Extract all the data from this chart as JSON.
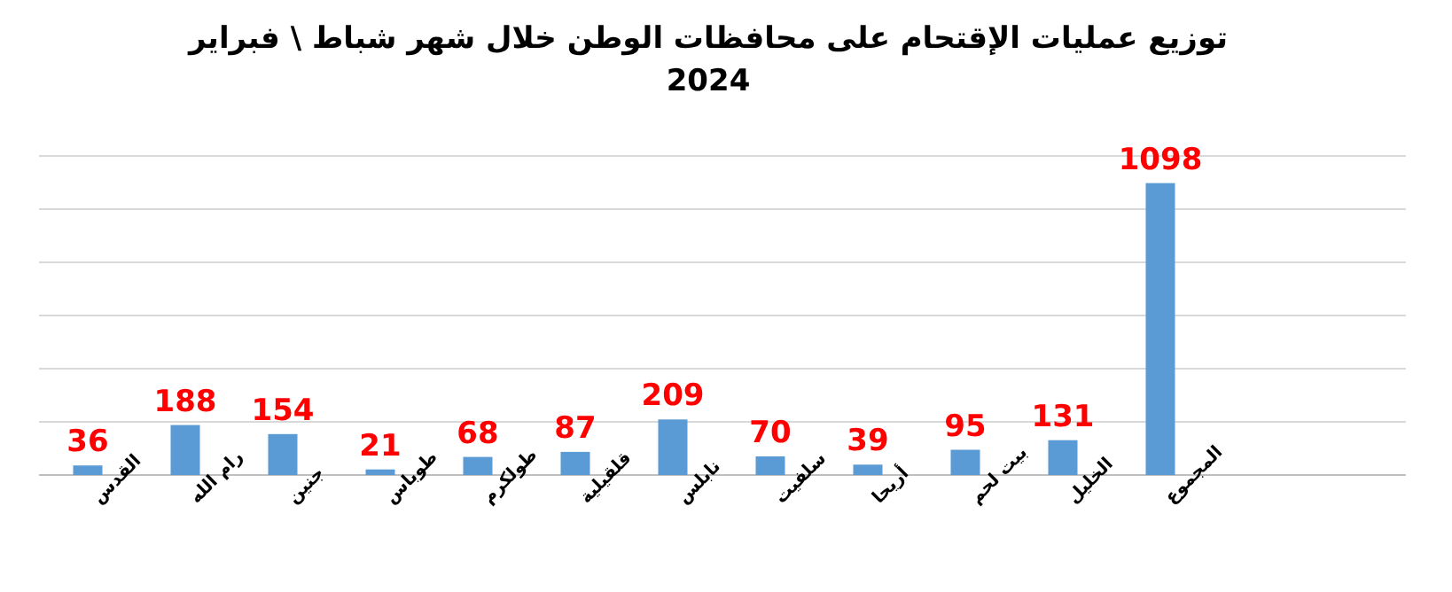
{
  "chart_data": {
    "type": "bar",
    "title": "توزيع عمليات الإقتحام على محافظات الوطن خلال شهر شباط \\ فبراير 2024",
    "categories": [
      "القدس",
      "رام الله",
      "جنين",
      "طوباس",
      "طولكرم",
      "قلقيلية",
      "نابلس",
      "سلفيت",
      "أريحا",
      "بيت لحم",
      "الخليل",
      "المجموع"
    ],
    "values": [
      36,
      188,
      154,
      21,
      68,
      87,
      209,
      70,
      39,
      95,
      131,
      1098
    ],
    "color": "#5b9bd5",
    "data_labels": true,
    "ylim": [
      0,
      1200
    ],
    "yticks": [
      {
        "value": 0,
        "label": null
      },
      {
        "value": 200,
        "label": null
      },
      {
        "value": 400,
        "label": null
      },
      {
        "value": 600,
        "label": null
      },
      {
        "value": 800,
        "label": null
      },
      {
        "value": 1000,
        "label": null
      },
      {
        "value": 1200,
        "label": null
      }
    ],
    "grid": "y"
  }
}
